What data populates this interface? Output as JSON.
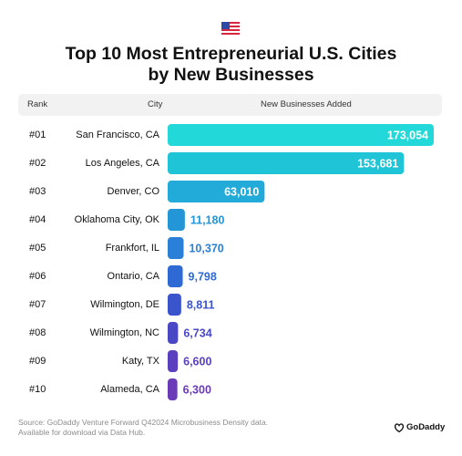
{
  "flag_icon": "us-flag-icon",
  "title_line1": "Top 10 Most Entrepreneurial U.S. Cities",
  "title_line2": "by New Businesses",
  "header": {
    "rank": "Rank",
    "city": "City",
    "value": "New Businesses Added"
  },
  "chart_data": {
    "type": "bar",
    "orientation": "horizontal",
    "title": "Top 10 Most Entrepreneurial U.S. Cities by New Businesses",
    "ranks": [
      "#01",
      "#02",
      "#03",
      "#04",
      "#05",
      "#06",
      "#07",
      "#08",
      "#09",
      "#10"
    ],
    "categories": [
      "San Francisco, CA",
      "Los Angeles, CA",
      "Denver, CO",
      "Oklahoma City, OK",
      "Frankfort, IL",
      "Ontario, CA",
      "Wilmington, DE",
      "Wilmington, NC",
      "Katy, TX",
      "Alameda, CA"
    ],
    "values": [
      173054,
      153681,
      63010,
      11180,
      10370,
      9798,
      8811,
      6734,
      6600,
      6300
    ],
    "value_labels": [
      "173,054",
      "153,681",
      "63,010",
      "11,180",
      "10,370",
      "9,798",
      "8,811",
      "6,734",
      "6,600",
      "6,300"
    ],
    "colors": [
      "#22d8d8",
      "#1fc4d6",
      "#22aad8",
      "#2396d8",
      "#2a7fd6",
      "#2f6ad4",
      "#3a55cc",
      "#4a48c4",
      "#5a40bf",
      "#6a3ab8"
    ],
    "xlim": [
      0,
      173054
    ],
    "grid": false,
    "legend": "none"
  },
  "footer_line1": "Source: GoDaddy Venture Forward Q42024 Microbusiness Density data.",
  "footer_line2": "Available for download via Data Hub.",
  "logo_text": "GoDaddy",
  "logo_icon": "godaddy-logo-icon"
}
